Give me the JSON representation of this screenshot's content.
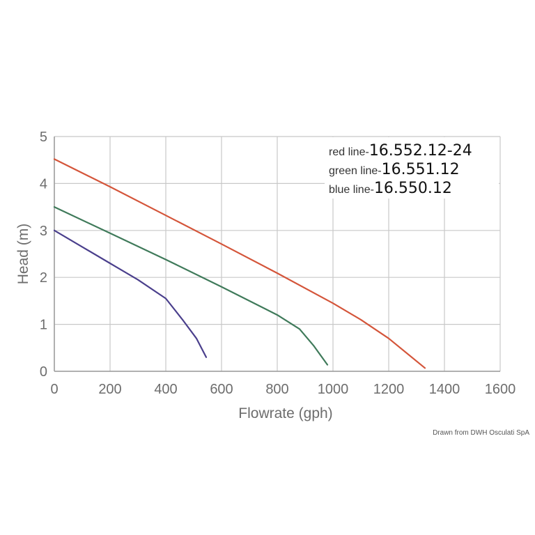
{
  "chart_data": {
    "type": "line",
    "xlabel": "Flowrate (gph)",
    "ylabel": "Head (m)",
    "xlim": [
      0,
      1600
    ],
    "ylim": [
      0,
      5
    ],
    "xticks": [
      "0",
      "200",
      "400",
      "600",
      "800",
      "1000",
      "1200",
      "1400",
      "1600"
    ],
    "yticks": [
      "0",
      "1",
      "2",
      "3",
      "4",
      "5"
    ],
    "grid": true,
    "legend_placement": "top-right",
    "series": [
      {
        "prefix": "red line-",
        "name": "16.552.12-24",
        "color": "#d4553a",
        "x": [
          0,
          200,
          400,
          600,
          800,
          1000,
          1100,
          1200,
          1330
        ],
        "y": [
          4.52,
          3.93,
          3.32,
          2.71,
          2.09,
          1.45,
          1.1,
          0.7,
          0.07
        ]
      },
      {
        "prefix": "green line-",
        "name": "16.551.12",
        "color": "#3f7a5a",
        "x": [
          0,
          200,
          400,
          600,
          800,
          880,
          930,
          980
        ],
        "y": [
          3.5,
          2.94,
          2.38,
          1.8,
          1.2,
          0.9,
          0.55,
          0.14
        ]
      },
      {
        "prefix": "blue line-",
        "name": "16.550.12",
        "color": "#4a3f8c",
        "x": [
          0,
          100,
          200,
          300,
          400,
          460,
          510,
          545
        ],
        "y": [
          3.0,
          2.65,
          2.3,
          1.95,
          1.55,
          1.1,
          0.7,
          0.3
        ]
      }
    ]
  },
  "credit": "Drawn from DWH Osculati SpA"
}
